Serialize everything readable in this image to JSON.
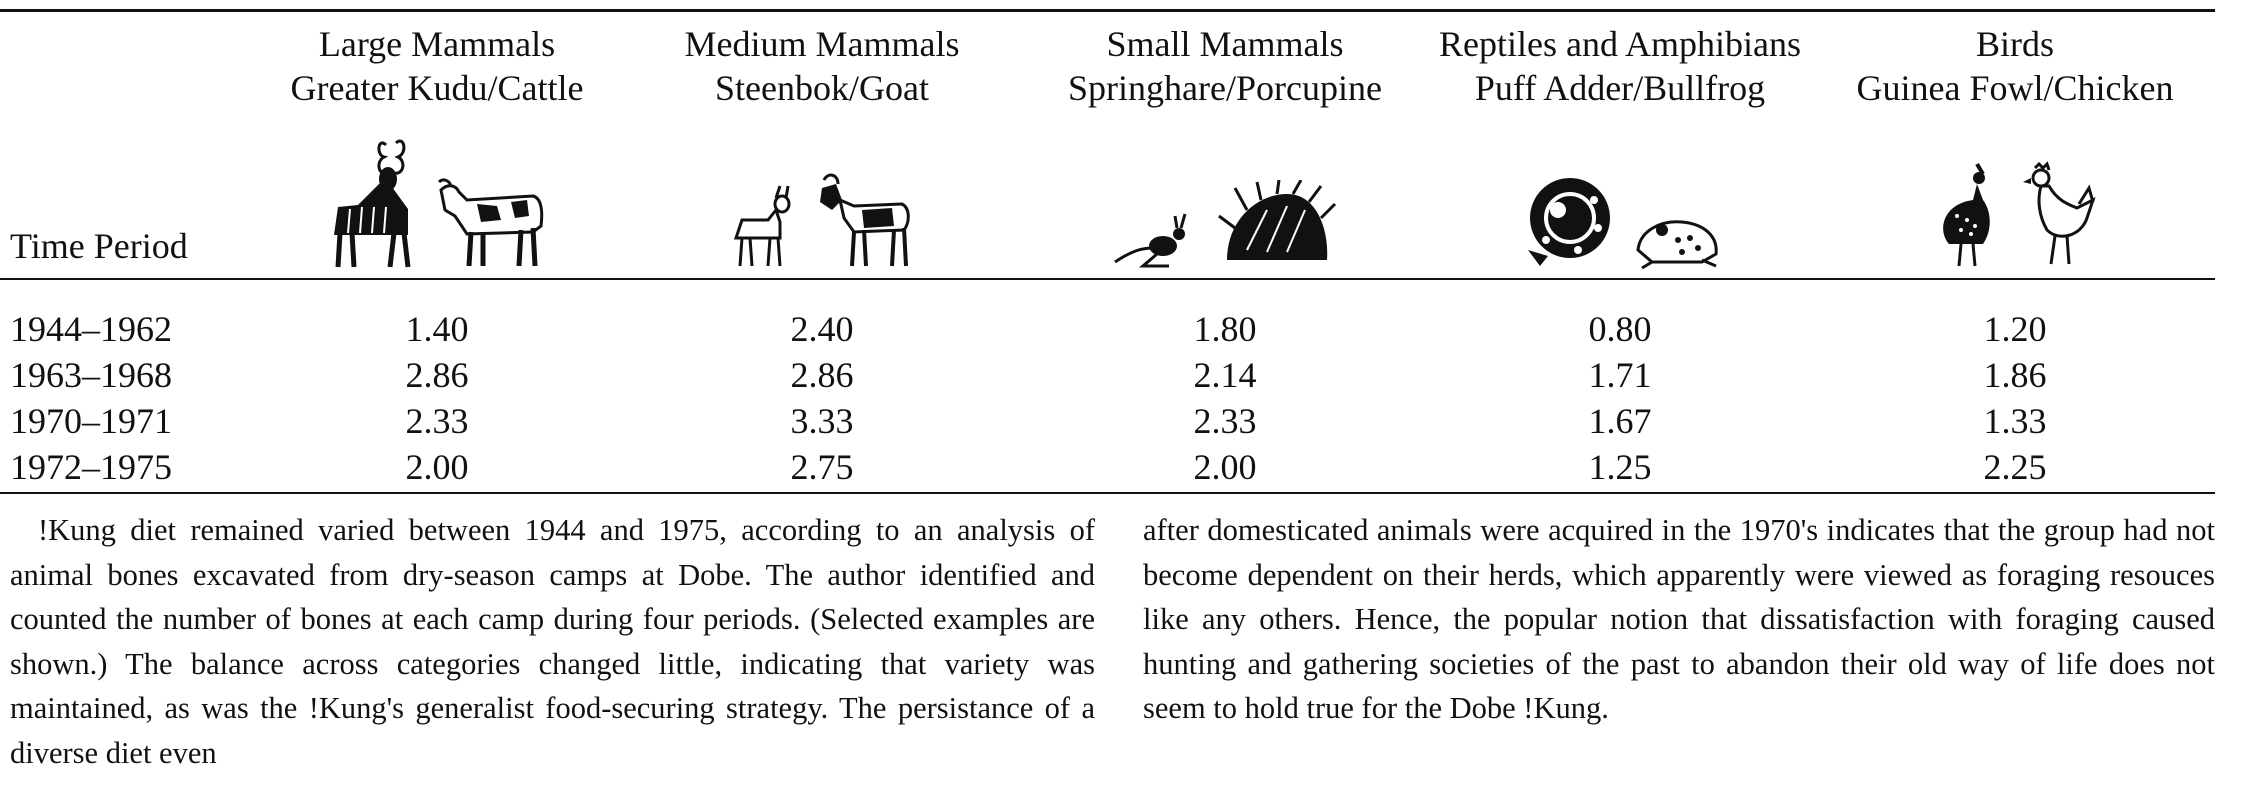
{
  "table": {
    "time_period_label": "Time Period",
    "categories": [
      {
        "title": "Large Mammals",
        "examples": "Greater Kudu/Cattle",
        "icon_name": "kudu-cattle"
      },
      {
        "title": "Medium Mammals",
        "examples": "Steenbok/Goat",
        "icon_name": "steenbok-goat"
      },
      {
        "title": "Small Mammals",
        "examples": "Springhare/Porcupine",
        "icon_name": "springhare-porcupine"
      },
      {
        "title": "Reptiles and Amphibians",
        "examples": "Puff Adder/Bullfrog",
        "icon_name": "puff-adder-bullfrog"
      },
      {
        "title": "Birds",
        "examples": "Guinea Fowl/Chicken",
        "icon_name": "guinea-fowl-chicken"
      }
    ],
    "rows": [
      {
        "period": "1944–1962",
        "values": [
          "1.40",
          "2.40",
          "1.80",
          "0.80",
          "1.20"
        ]
      },
      {
        "period": "1963–1968",
        "values": [
          "2.86",
          "2.86",
          "2.14",
          "1.71",
          "1.86"
        ]
      },
      {
        "period": "1970–1971",
        "values": [
          "2.33",
          "3.33",
          "2.33",
          "1.67",
          "1.33"
        ]
      },
      {
        "period": "1972–1975",
        "values": [
          "2.00",
          "2.75",
          "2.00",
          "1.25",
          "2.25"
        ]
      }
    ]
  },
  "caption": {
    "left": "!Kung diet remained varied between 1944 and 1975, according to an analysis of animal bones excavated from dry-season camps at Dobe. The author identified and counted the number of bones at each camp during four periods. (Selected examples are shown.) The balance across categories changed little, indicating that variety was maintained, as was the !Kung's generalist food-securing strategy. The persistance of a diverse diet even",
    "right": "after domesticated animals were acquired in the 1970's indicates that the group had not become dependent on their herds, which apparently were viewed as foraging resouces like any others. Hence, the popular notion that dissatisfaction with foraging caused hunting and gathering societies of the past to abandon their old way of life does not seem to hold true for the Dobe !Kung."
  }
}
